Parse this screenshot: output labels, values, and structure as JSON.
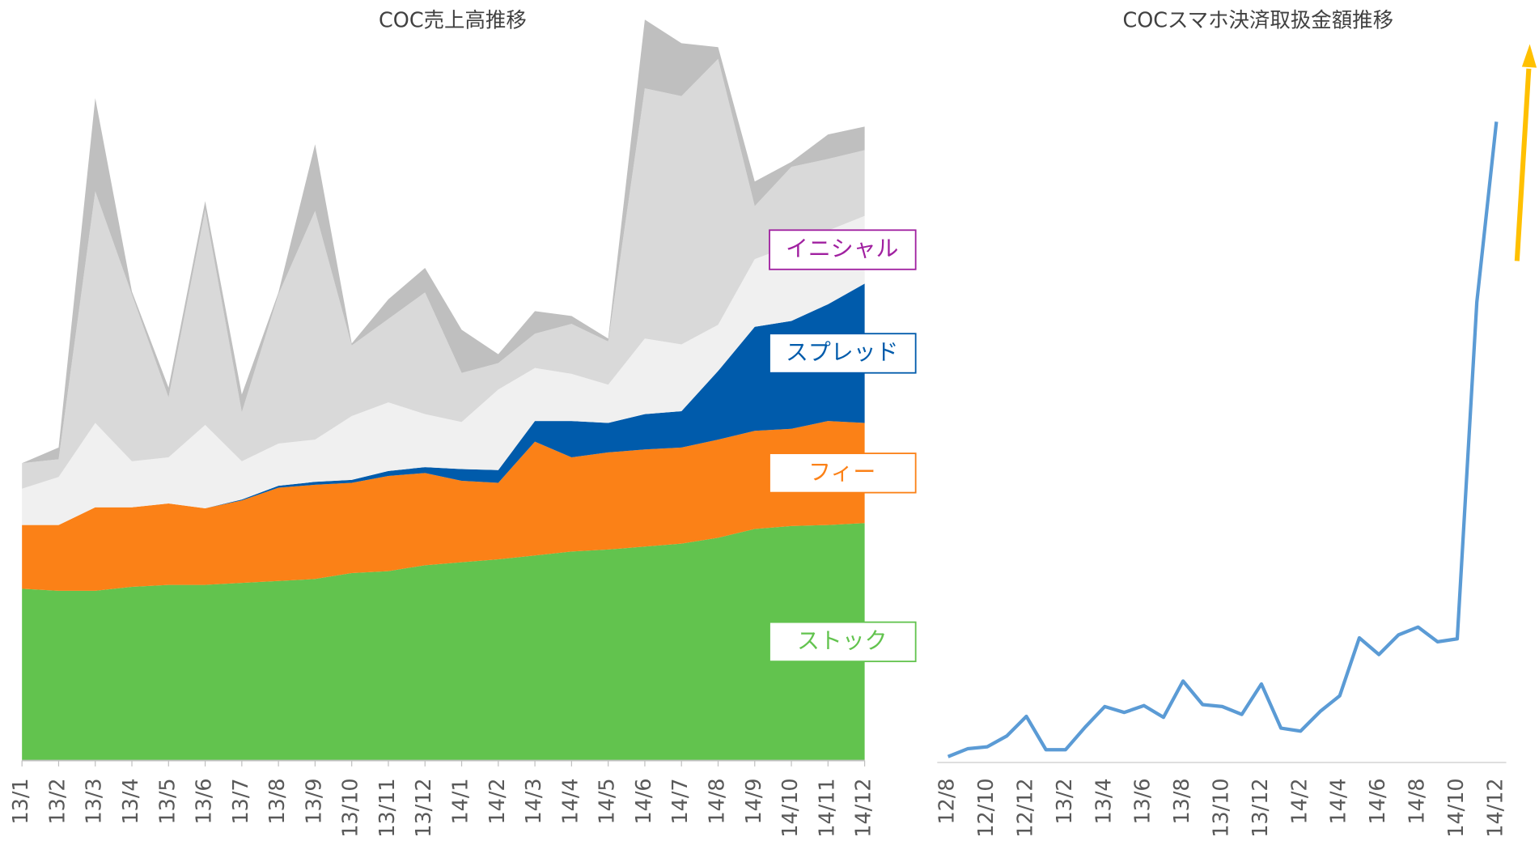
{
  "chart_data": [
    {
      "type": "stacked-area",
      "title": "COC売上高推移",
      "categories": [
        "13/1",
        "13/2",
        "13/3",
        "13/4",
        "13/5",
        "13/6",
        "13/7",
        "13/8",
        "13/9",
        "13/10",
        "13/11",
        "13/12",
        "14/1",
        "14/2",
        "14/3",
        "14/4",
        "14/5",
        "14/6",
        "14/7",
        "14/8",
        "14/9",
        "14/10",
        "14/11",
        "14/12"
      ],
      "ylim": [
        0,
        755
      ],
      "series": [
        {
          "name": "ストック",
          "color": "#62c34e",
          "label_color": "#62c34e",
          "values": [
            175,
            173,
            173,
            177,
            179,
            179,
            181,
            183,
            185,
            191,
            193,
            199,
            202,
            205,
            209,
            213,
            215,
            218,
            221,
            227,
            236,
            239,
            240,
            242
          ]
        },
        {
          "name": "フィー",
          "color": "#fb8117",
          "label_color": "#fb8117",
          "values": [
            65,
            67,
            85,
            81,
            83,
            78,
            84,
            95,
            96,
            92,
            97,
            94,
            83,
            78,
            116,
            96,
            99,
            99,
            98,
            100,
            100,
            99,
            106,
            102
          ]
        },
        {
          "name": "スプレッド",
          "color": "#005bab",
          "label_color": "#005bab",
          "values": [
            0,
            0,
            0,
            0,
            0,
            0,
            1,
            2,
            3,
            3,
            5,
            6,
            12,
            13,
            21,
            37,
            30,
            36,
            37,
            70,
            106,
            110,
            119,
            142
          ]
        },
        {
          "name": "イニシャル",
          "color": "#f0f0f0",
          "label_color": "#a020a0",
          "values": [
            37,
            49,
            86,
            47,
            47,
            85,
            39,
            43,
            43,
            65,
            70,
            54,
            48,
            82,
            54,
            48,
            39,
            77,
            68,
            47,
            69,
            77,
            75,
            69
          ]
        },
        {
          "color": "#d9d9d9",
          "values": [
            26,
            18,
            236,
            170,
            61,
            219,
            50,
            152,
            233,
            72,
            85,
            124,
            50,
            27,
            35,
            51,
            44,
            255,
            253,
            271,
            54,
            80,
            73,
            67
          ]
        },
        {
          "color": "#bfbfbf",
          "values": [
            0,
            12,
            95,
            3,
            10,
            9,
            18,
            2,
            68,
            2,
            20,
            25,
            44,
            9,
            23,
            8,
            3,
            70,
            54,
            12,
            25,
            5,
            25,
            24
          ]
        }
      ]
    },
    {
      "type": "line",
      "title": "COCスマホ決済取扱金額推移",
      "categories": [
        "12/8",
        null,
        "12/10",
        null,
        "12/12",
        null,
        "13/2",
        null,
        "13/4",
        null,
        "13/6",
        null,
        "13/8",
        null,
        "13/10",
        null,
        "13/12",
        null,
        "14/2",
        null,
        "14/4",
        null,
        "14/6",
        null,
        "14/8",
        null,
        "14/10",
        null,
        "14/12"
      ],
      "ylim": [
        0,
        700
      ],
      "color": "#5b9bd5",
      "values": [
        6,
        14,
        16,
        27,
        47,
        13,
        13,
        36,
        57,
        51,
        58,
        46,
        83,
        59,
        57,
        49,
        80,
        35,
        32,
        52,
        68,
        127,
        110,
        130,
        138,
        123,
        126,
        469,
        653
      ]
    }
  ]
}
